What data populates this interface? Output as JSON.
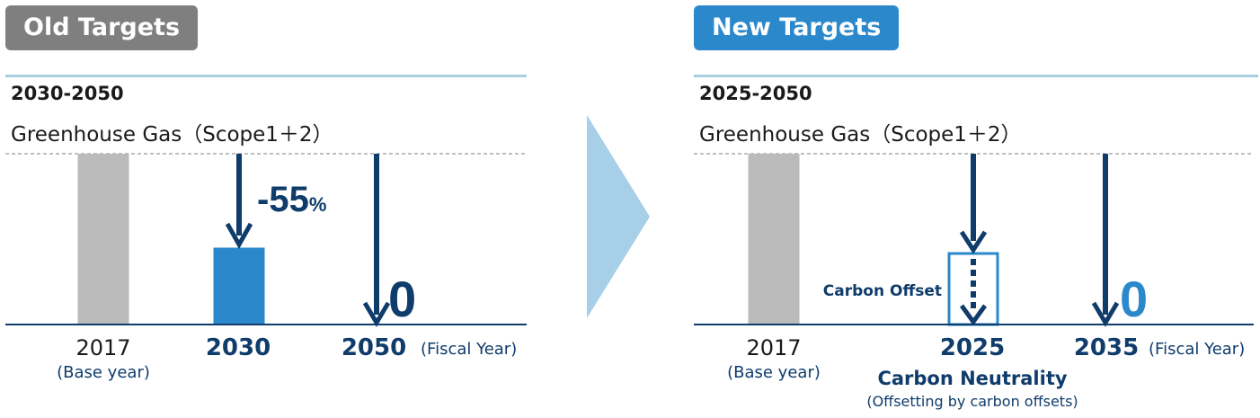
{
  "colors": {
    "navy": "#0f3c6b",
    "blue": "#2b88cb",
    "gray_bar": "#bbbbbb",
    "gray_badge": "#7f7f7f",
    "light_line": "#a6cfe0",
    "big_arrow": "#a7cfe8"
  },
  "old": {
    "badge": "Old Targets",
    "period": "2030-2050",
    "subtitle": "Greenhouse Gas（Scope1＋2）",
    "reduction_num": "-55",
    "reduction_unit": "%",
    "zero_label": "0",
    "fiscal_year": "(Fiscal Year)",
    "x_labels": [
      "2017",
      "2030",
      "2050"
    ],
    "base_year_note": "(Base year)"
  },
  "new": {
    "badge": "New Targets",
    "period": "2025-2050",
    "subtitle": "Greenhouse Gas（Scope1＋2）",
    "offset_label": "Carbon Offset",
    "zero_label": "0",
    "fiscal_year": "(Fiscal Year)",
    "x_labels": [
      "2017",
      "2025",
      "2035"
    ],
    "base_year_note": "(Base year)",
    "neutrality_label": "Carbon Neutrality",
    "neutrality_note": "(Offsetting by carbon offsets)"
  },
  "chart_data": [
    {
      "type": "bar",
      "categories": [
        "2017",
        "2030",
        "2050"
      ],
      "values": [
        100,
        45,
        0
      ],
      "unit": "% of 2017 (base year)",
      "ylim": [
        0,
        100
      ]
    },
    {
      "type": "bar",
      "categories": [
        "2017",
        "2025",
        "2035"
      ],
      "values": [
        100,
        0,
        0
      ],
      "unit": "% of 2017 (base year)",
      "ylim": [
        0,
        100
      ]
    }
  ]
}
